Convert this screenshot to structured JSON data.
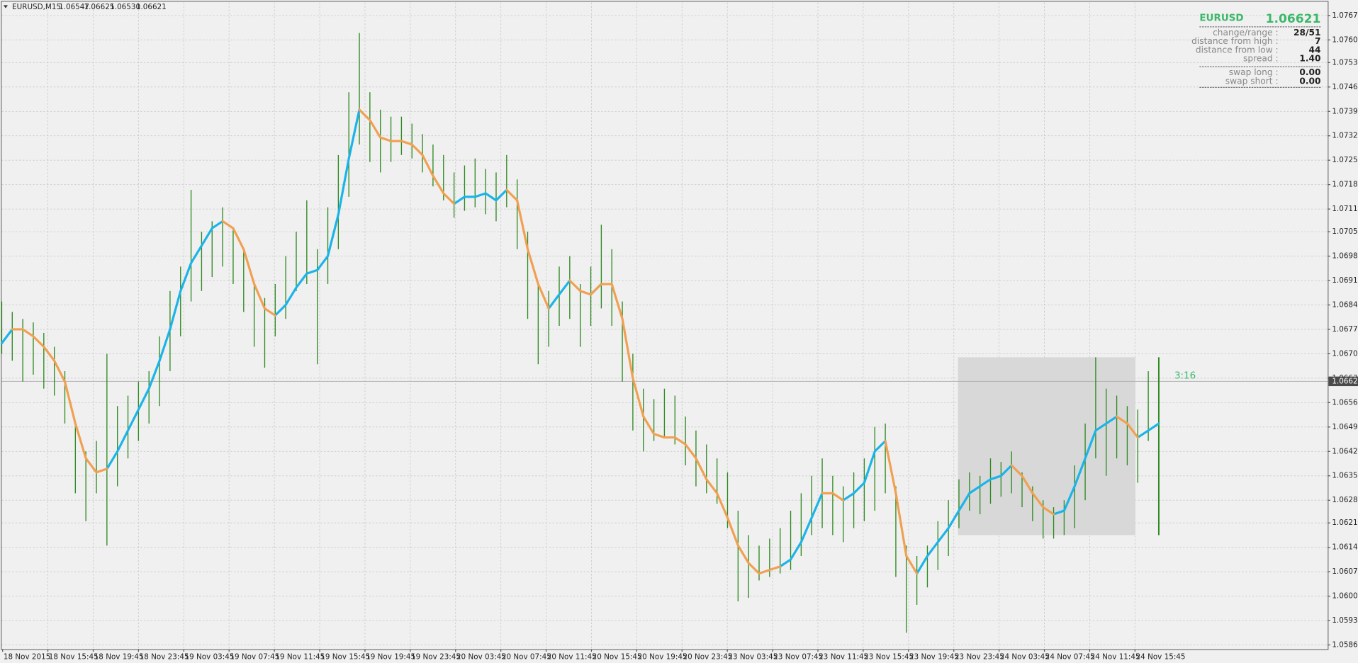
{
  "header": {
    "symbol": "EURUSD,M15",
    "open": "1.06547",
    "high": "1.06625",
    "low": "1.06530",
    "close": "1.06621"
  },
  "info": {
    "symbol": "EURUSD",
    "price": "1.06621",
    "rows": [
      {
        "label": "change/range :",
        "value": "28/51",
        "color": "#f0a040"
      },
      {
        "label": "distance from high :",
        "value": "7",
        "color": "#f0a040"
      },
      {
        "label": "distance from low :",
        "value": "44",
        "color": "#3cb86a"
      },
      {
        "label": "spread :",
        "value": "1.40",
        "color": "#3cb86a"
      }
    ],
    "swap": [
      {
        "label": "swap long :",
        "value": "0.00",
        "color": "#3cb86a"
      },
      {
        "label": "swap short :",
        "value": "0.00",
        "color": "#3cb86a"
      }
    ]
  },
  "chart_data": {
    "type": "ohlc",
    "color": "#2f8a22",
    "grid": true,
    "ylim": [
      1.05853,
      1.07707
    ],
    "yticks": [
      {
        "value": 1.0767,
        "label": "1.07670"
      },
      {
        "value": 1.076,
        "label": "1.07600"
      },
      1.07535,
      1.07465,
      1.07395,
      1.07325,
      1.07255,
      1.07185,
      1.07115,
      {
        "value": 1.0705,
        "label": "1.07050"
      },
      {
        "value": 1.0698,
        "label": "1.06980"
      },
      {
        "value": 1.0691,
        "label": "1.06910"
      },
      {
        "value": 1.0684,
        "label": "1.06840"
      },
      {
        "value": 1.0677,
        "label": "1.06770"
      },
      {
        "value": 1.067,
        "label": "1.06700"
      },
      {
        "value": 1.0663,
        "label": "1.06630"
      },
      {
        "value": 1.0656,
        "label": "1.06560"
      },
      {
        "value": 1.0649,
        "label": "1.06490"
      },
      {
        "value": 1.0642,
        "label": "1.06420"
      },
      {
        "value": 1.0635,
        "label": "1.06350"
      },
      {
        "value": 1.0628,
        "label": "1.06280"
      },
      1.06215,
      1.06145,
      1.06075,
      1.06005,
      1.05935,
      1.05865
    ],
    "x_labels": [
      "18 Nov 2015",
      "18 Nov 15:45",
      "18 Nov 19:45",
      "18 Nov 23:45",
      "19 Nov 03:45",
      "19 Nov 07:45",
      "19 Nov 11:45",
      "19 Nov 15:45",
      "19 Nov 19:45",
      "19 Nov 23:45",
      "20 Nov 03:45",
      "20 Nov 07:45",
      "20 Nov 11:45",
      "20 Nov 15:45",
      "20 Nov 19:45",
      "20 Nov 23:45",
      "23 Nov 03:45",
      "23 Nov 07:45",
      "23 Nov 11:45",
      "23 Nov 15:45",
      "23 Nov 19:45",
      "23 Nov 23:45",
      "24 Nov 03:45",
      "24 Nov 07:45",
      "24 Nov 11:45",
      "24 Nov 15:45"
    ],
    "high": [
      1.0685,
      1.0682,
      1.068,
      1.0679,
      1.0676,
      1.0672,
      1.0665,
      1.065,
      1.0642,
      1.0645,
      1.067,
      1.0655,
      1.0658,
      1.0662,
      1.0665,
      1.0675,
      1.0688,
      1.0695,
      1.0717,
      1.0705,
      1.0708,
      1.0712,
      1.0706,
      1.07,
      1.069,
      1.0686,
      1.069,
      1.0698,
      1.0705,
      1.0714,
      1.07,
      1.0712,
      1.0727,
      1.0745,
      1.0762,
      1.0745,
      1.074,
      1.0738,
      1.0738,
      1.0736,
      1.0733,
      1.073,
      1.0727,
      1.0722,
      1.0724,
      1.0726,
      1.0723,
      1.0722,
      1.0727,
      1.072,
      1.0705,
      1.069,
      1.0688,
      1.0695,
      1.0698,
      1.069,
      1.0695,
      1.0707,
      1.07,
      1.0685,
      1.067,
      1.066,
      1.0657,
      1.066,
      1.0658,
      1.0652,
      1.0648,
      1.0644,
      1.064,
      1.0636,
      1.0625,
      1.0618,
      1.0615,
      1.0617,
      1.062,
      1.0625,
      1.063,
      1.0635,
      1.064,
      1.0635,
      1.0632,
      1.0636,
      1.064,
      1.0649,
      1.065,
      1.0632,
      1.0615,
      1.0612,
      1.0615,
      1.0622,
      1.0628,
      1.0634,
      1.0636,
      1.0635,
      1.064,
      1.0639,
      1.0642,
      1.0636,
      1.0632,
      1.0628,
      1.0626,
      1.0628,
      1.0638,
      1.065,
      1.0669,
      1.066,
      1.0658,
      1.0655,
      1.0654,
      1.0665,
      1.0669
    ],
    "low": [
      1.067,
      1.0668,
      1.0662,
      1.0664,
      1.066,
      1.0658,
      1.065,
      1.063,
      1.0622,
      1.063,
      1.0615,
      1.0632,
      1.064,
      1.0645,
      1.065,
      1.0655,
      1.0665,
      1.0675,
      1.0685,
      1.0688,
      1.0692,
      1.0695,
      1.069,
      1.0682,
      1.0672,
      1.0666,
      1.0675,
      1.068,
      1.0688,
      1.069,
      1.0667,
      1.069,
      1.07,
      1.0715,
      1.073,
      1.0725,
      1.0722,
      1.0725,
      1.0727,
      1.0726,
      1.0722,
      1.0718,
      1.0714,
      1.0709,
      1.0711,
      1.0712,
      1.071,
      1.0708,
      1.0712,
      1.07,
      1.068,
      1.0667,
      1.0672,
      1.0678,
      1.068,
      1.0672,
      1.0678,
      1.0683,
      1.0678,
      1.0662,
      1.0648,
      1.0642,
      1.0645,
      1.0646,
      1.0644,
      1.0638,
      1.0632,
      1.063,
      1.0627,
      1.062,
      1.0599,
      1.06,
      1.0605,
      1.0606,
      1.0607,
      1.0608,
      1.0612,
      1.0618,
      1.062,
      1.0618,
      1.0616,
      1.062,
      1.0622,
      1.0625,
      1.063,
      1.0606,
      1.059,
      1.0598,
      1.0603,
      1.0608,
      1.0612,
      1.062,
      1.0625,
      1.0624,
      1.0627,
      1.0629,
      1.063,
      1.0626,
      1.0622,
      1.0617,
      1.0617,
      1.0618,
      1.062,
      1.0628,
      1.064,
      1.0635,
      1.064,
      1.0638,
      1.0633,
      1.0645,
      1.0618
    ],
    "series": [
      {
        "color": "#1ab4ea",
        "values": [
          1.0673,
          1.0677,
          null,
          null,
          null,
          null,
          null,
          null,
          null,
          null,
          1.0637,
          1.0642,
          1.0648,
          1.0654,
          1.066,
          1.0668,
          1.0677,
          1.0688,
          1.0696,
          1.0701,
          1.0706,
          1.0708,
          null,
          null,
          null,
          null,
          1.0681,
          1.0684,
          1.0689,
          1.0693,
          1.0694,
          1.0698,
          1.071,
          1.0726,
          1.074,
          null,
          null,
          null,
          null,
          null,
          null,
          null,
          null,
          1.0713,
          1.0715,
          1.0715,
          1.0716,
          1.0714,
          1.0717,
          null,
          null,
          null,
          1.0683,
          1.0687,
          1.0691,
          null,
          1.0687,
          1.069,
          null,
          null,
          null,
          null,
          null,
          null,
          null,
          null,
          null,
          null,
          null,
          null,
          null,
          null,
          null,
          null,
          1.0609,
          1.0611,
          1.0616,
          1.0623,
          1.063,
          null,
          1.0628,
          1.063,
          1.0633,
          1.0642,
          1.0645,
          null,
          null,
          1.0607,
          1.0612,
          1.0616,
          1.062,
          1.0625,
          1.063,
          1.0632,
          1.0634,
          1.0635,
          1.0638,
          null,
          null,
          null,
          1.0624,
          1.0625,
          1.0632,
          1.064,
          1.0648,
          1.065,
          1.0652,
          null,
          1.0646,
          1.0648,
          1.065
        ]
      },
      {
        "color": "#f0a050",
        "values": [
          null,
          1.0677,
          1.0677,
          1.0675,
          1.0672,
          1.0668,
          1.0662,
          1.065,
          1.064,
          1.0636,
          1.0637,
          null,
          null,
          null,
          null,
          null,
          null,
          null,
          null,
          null,
          null,
          1.0708,
          1.0706,
          1.07,
          1.069,
          1.0683,
          1.0681,
          null,
          null,
          null,
          null,
          null,
          null,
          null,
          1.074,
          1.0737,
          1.0732,
          1.0731,
          1.0731,
          1.073,
          1.0727,
          1.0721,
          1.0716,
          1.0713,
          null,
          null,
          null,
          null,
          1.0717,
          1.0714,
          1.07,
          1.069,
          1.0683,
          null,
          1.0691,
          1.0688,
          1.0687,
          1.069,
          1.069,
          1.068,
          1.0663,
          1.0652,
          1.0647,
          1.0646,
          1.0646,
          1.0644,
          1.064,
          1.0634,
          1.063,
          1.0623,
          1.0615,
          1.061,
          1.0607,
          1.0608,
          1.0609,
          null,
          null,
          null,
          1.063,
          1.063,
          1.0628,
          null,
          null,
          null,
          1.0645,
          1.063,
          1.0612,
          1.0607,
          null,
          null,
          null,
          null,
          null,
          null,
          null,
          null,
          1.0638,
          1.0635,
          1.063,
          1.0626,
          1.0624,
          null,
          null,
          null,
          null,
          null,
          1.0652,
          1.065,
          1.0646,
          null,
          null
        ]
      }
    ],
    "current_price": 1.06621,
    "range_box": {
      "high": 1.0669,
      "low": 1.0618
    },
    "timer": "3:16"
  }
}
